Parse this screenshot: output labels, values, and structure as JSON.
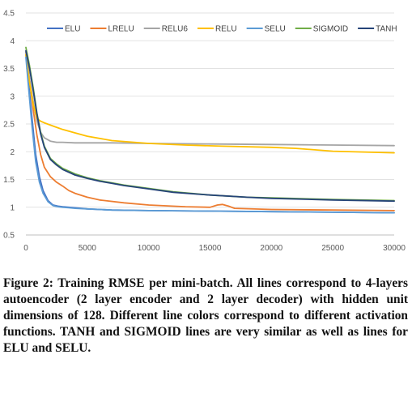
{
  "chart_data": {
    "type": "line",
    "title": "",
    "xlabel": "",
    "ylabel": "",
    "xlim": [
      0,
      30000
    ],
    "ylim": [
      0.5,
      4.5
    ],
    "x_ticks": [
      "0",
      "5000",
      "10000",
      "15000",
      "20000",
      "25000",
      "30000"
    ],
    "y_ticks": [
      "0.5",
      "1",
      "1.5",
      "2",
      "2.5",
      "3",
      "3.5",
      "4",
      "4.5"
    ],
    "grid": "horizontal",
    "legend": "top",
    "series": [
      {
        "name": "ELU",
        "color": "#4472c4",
        "x": [
          0,
          200,
          500,
          800,
          1100,
          1400,
          1800,
          2200,
          2600,
          3000,
          3500,
          4000,
          5000,
          7000,
          10000,
          15000,
          20000,
          25000,
          30000
        ],
        "y": [
          3.75,
          3.3,
          2.6,
          1.95,
          1.55,
          1.3,
          1.12,
          1.04,
          1.02,
          1.01,
          1.0,
          0.99,
          0.97,
          0.95,
          0.94,
          0.93,
          0.92,
          0.91,
          0.9
        ]
      },
      {
        "name": "LRELU",
        "color": "#ed7d31",
        "x": [
          0,
          300,
          600,
          900,
          1200,
          1500,
          2000,
          2500,
          3000,
          3500,
          4000,
          5000,
          6000,
          8000,
          10000,
          13000,
          15000,
          15600,
          16000,
          16500,
          17000,
          20000,
          25000,
          30000
        ],
        "y": [
          3.8,
          3.3,
          2.75,
          2.3,
          1.95,
          1.72,
          1.55,
          1.45,
          1.38,
          1.3,
          1.25,
          1.18,
          1.13,
          1.08,
          1.04,
          1.01,
          1.0,
          1.04,
          1.05,
          1.02,
          0.98,
          0.96,
          0.95,
          0.94
        ]
      },
      {
        "name": "RELU6",
        "color": "#a5a5a5",
        "x": [
          0,
          300,
          600,
          900,
          1200,
          1500,
          2000,
          2500,
          3000,
          4000,
          5000,
          7000,
          10000,
          15000,
          20000,
          25000,
          30000
        ],
        "y": [
          3.8,
          3.3,
          2.9,
          2.55,
          2.35,
          2.25,
          2.19,
          2.17,
          2.17,
          2.16,
          2.16,
          2.16,
          2.15,
          2.14,
          2.13,
          2.12,
          2.11
        ]
      },
      {
        "name": "RELU",
        "color": "#ffc000",
        "x": [
          0,
          300,
          600,
          900,
          1200,
          1500,
          2000,
          2500,
          3000,
          4000,
          5000,
          7000,
          10000,
          13000,
          16000,
          20000,
          22000,
          25000,
          30000
        ],
        "y": [
          3.75,
          3.25,
          2.85,
          2.6,
          2.55,
          2.52,
          2.48,
          2.44,
          2.4,
          2.34,
          2.28,
          2.2,
          2.15,
          2.12,
          2.1,
          2.08,
          2.06,
          2.01,
          1.98
        ]
      },
      {
        "name": "SELU",
        "color": "#5b9bd5",
        "x": [
          0,
          200,
          500,
          800,
          1100,
          1400,
          1800,
          2200,
          2600,
          3000,
          3500,
          4000,
          5000,
          7000,
          10000,
          15000,
          20000,
          25000,
          30000
        ],
        "y": [
          3.7,
          3.2,
          2.45,
          1.82,
          1.45,
          1.25,
          1.1,
          1.03,
          1.01,
          1.0,
          0.99,
          0.98,
          0.97,
          0.95,
          0.94,
          0.93,
          0.92,
          0.91,
          0.9
        ]
      },
      {
        "name": "SIGMOID",
        "color": "#70ad47",
        "x": [
          0,
          300,
          600,
          900,
          1200,
          1500,
          2000,
          2500,
          3000,
          4000,
          5000,
          6000,
          7000,
          8000,
          10000,
          12000,
          15000,
          18000,
          20000,
          25000,
          30000
        ],
        "y": [
          3.88,
          3.55,
          3.15,
          2.7,
          2.35,
          2.1,
          1.88,
          1.78,
          1.7,
          1.6,
          1.53,
          1.48,
          1.44,
          1.4,
          1.34,
          1.28,
          1.22,
          1.18,
          1.17,
          1.14,
          1.12
        ]
      },
      {
        "name": "TANH",
        "color": "#264478",
        "x": [
          0,
          300,
          600,
          900,
          1200,
          1500,
          2000,
          2500,
          3000,
          4000,
          5000,
          6000,
          7000,
          8000,
          10000,
          12000,
          15000,
          18000,
          20000,
          25000,
          30000
        ],
        "y": [
          3.82,
          3.5,
          3.1,
          2.68,
          2.32,
          2.08,
          1.86,
          1.76,
          1.68,
          1.58,
          1.52,
          1.47,
          1.43,
          1.39,
          1.33,
          1.27,
          1.22,
          1.18,
          1.16,
          1.13,
          1.11
        ]
      }
    ]
  },
  "caption": "Figure 2: Training RMSE per mini-batch. All lines correspond to 4-layers autoencoder (2 layer encoder and 2 layer decoder) with hidden unit dimensions of 128. Different line colors correspond to different activation functions. TANH and SIGMOID lines are very similar as well as lines for ELU and SELU."
}
